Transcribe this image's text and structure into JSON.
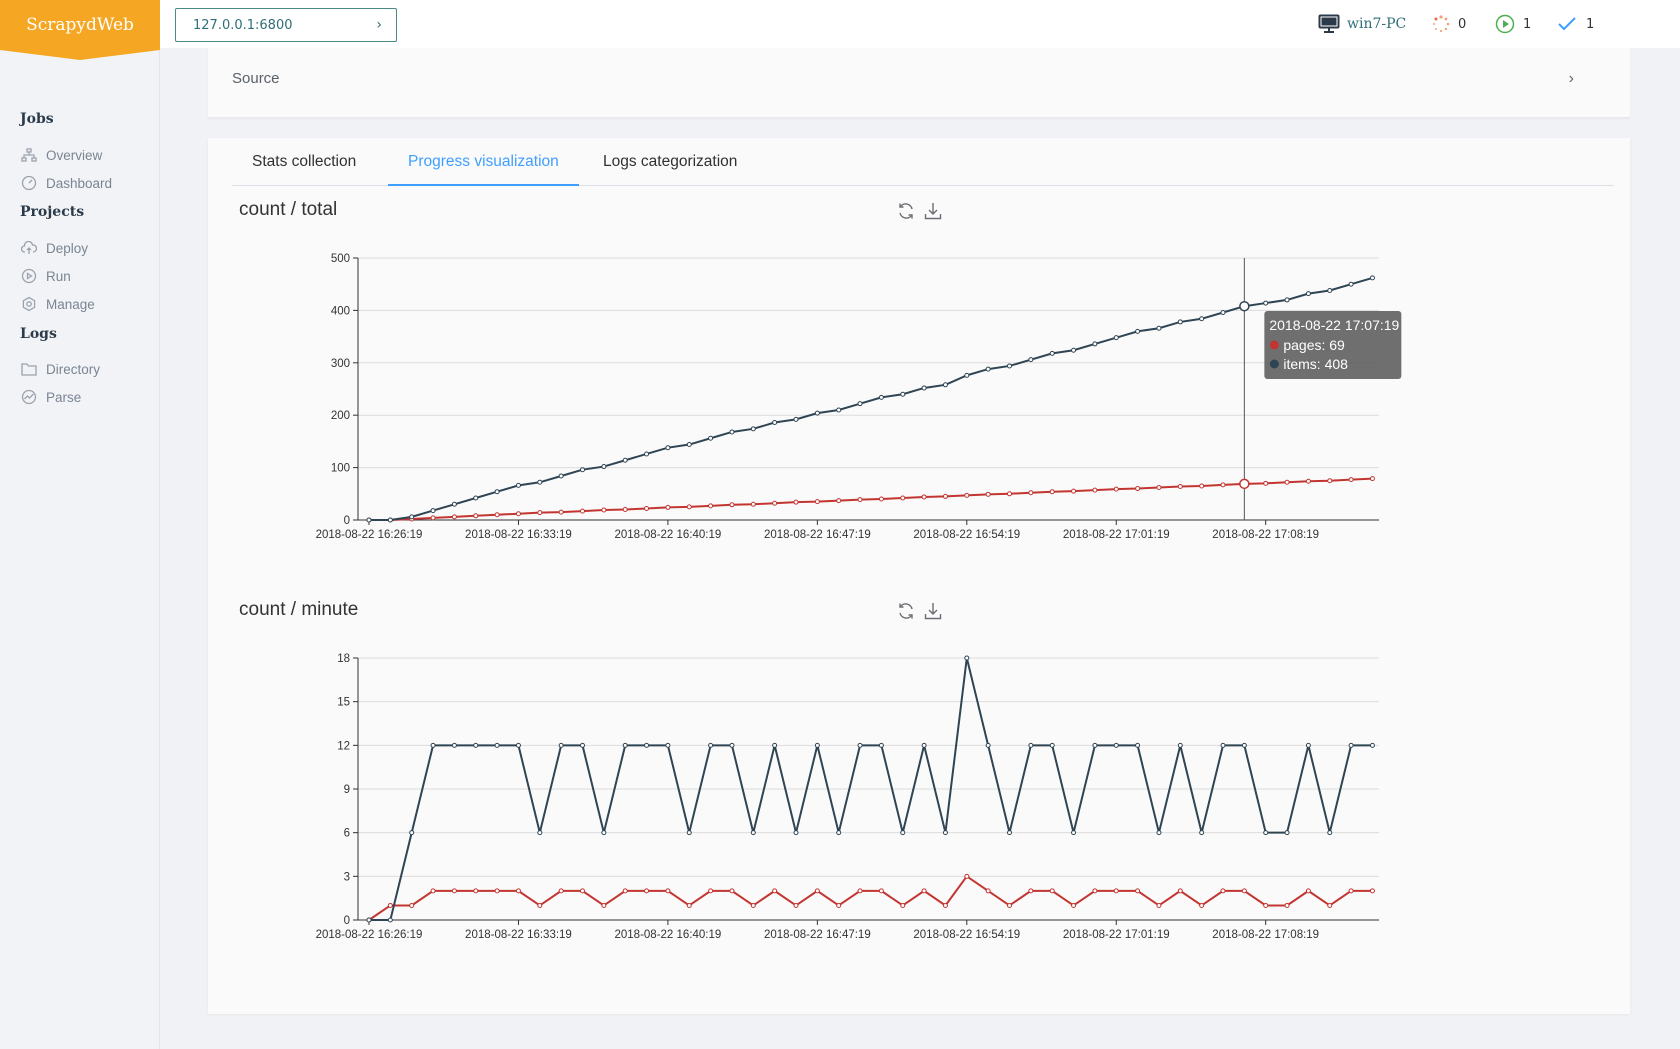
{
  "sidebar": {
    "logo": "ScrapydWeb",
    "groups": [
      {
        "title": "Jobs",
        "items": [
          {
            "label": "Overview",
            "icon": "sitemap-icon"
          },
          {
            "label": "Dashboard",
            "icon": "gauge-icon"
          }
        ]
      },
      {
        "title": "Projects",
        "items": [
          {
            "label": "Deploy",
            "icon": "upload-cloud-icon"
          },
          {
            "label": "Run",
            "icon": "play-circle-icon"
          },
          {
            "label": "Manage",
            "icon": "gear-icon"
          }
        ]
      },
      {
        "title": "Logs",
        "items": [
          {
            "label": "Directory",
            "icon": "folder-icon"
          },
          {
            "label": "Parse",
            "icon": "chart-line-icon"
          }
        ]
      }
    ]
  },
  "header": {
    "node": "127.0.0.1:6800",
    "host": "win7-PC",
    "pending": "0",
    "running": "1",
    "finished": "1",
    "colors": {
      "pending": "#f5a07a",
      "running": "#4caf50",
      "finished": "#409eff"
    }
  },
  "source": {
    "label": "Source"
  },
  "tabs": [
    {
      "label": "Stats collection",
      "active": false
    },
    {
      "label": "Progress visualization",
      "active": true
    },
    {
      "label": "Logs categorization",
      "active": false
    }
  ],
  "chart_data": [
    {
      "type": "line",
      "title": "count / total",
      "x_ticks": [
        "2018-08-22 16:26:19",
        "2018-08-22 16:33:19",
        "2018-08-22 16:40:19",
        "2018-08-22 16:47:19",
        "2018-08-22 16:54:19",
        "2018-08-22 17:01:19",
        "2018-08-22 17:08:19"
      ],
      "ylim": [
        0,
        500
      ],
      "y_ticks": [
        0,
        100,
        200,
        300,
        400,
        500
      ],
      "grid": true,
      "series": [
        {
          "name": "pages",
          "color": "#c23531",
          "values": [
            0,
            0,
            2,
            4,
            6,
            8,
            10,
            12,
            14,
            15,
            17,
            19,
            20,
            22,
            24,
            25,
            27,
            29,
            30,
            32,
            34,
            35,
            37,
            39,
            40,
            42,
            44,
            45,
            47,
            49,
            50,
            52,
            54,
            55,
            57,
            59,
            60,
            62,
            64,
            65,
            67,
            69,
            70,
            72,
            74,
            75,
            77,
            79
          ]
        },
        {
          "name": "items",
          "color": "#2f4554",
          "values": [
            0,
            0,
            6,
            18,
            30,
            42,
            54,
            66,
            72,
            84,
            96,
            102,
            114,
            126,
            138,
            144,
            156,
            168,
            174,
            186,
            192,
            204,
            210,
            222,
            234,
            240,
            252,
            258,
            276,
            288,
            294,
            306,
            318,
            324,
            336,
            348,
            360,
            366,
            378,
            384,
            396,
            408,
            414,
            420,
            432,
            438,
            450,
            462
          ]
        }
      ],
      "tooltip": {
        "title": "2018-08-22 17:07:19",
        "index": 41,
        "lines": [
          "pages: 69",
          "items: 408"
        ]
      }
    },
    {
      "type": "line",
      "title": "count / minute",
      "x_ticks": [
        "2018-08-22 16:26:19",
        "2018-08-22 16:33:19",
        "2018-08-22 16:40:19",
        "2018-08-22 16:47:19",
        "2018-08-22 16:54:19",
        "2018-08-22 17:01:19",
        "2018-08-22 17:08:19"
      ],
      "ylim": [
        0,
        18
      ],
      "y_ticks": [
        0,
        3,
        6,
        9,
        12,
        15,
        18
      ],
      "grid": true,
      "series": [
        {
          "name": "pages",
          "color": "#c23531",
          "values": [
            0,
            1,
            1,
            2,
            2,
            2,
            2,
            2,
            1,
            2,
            2,
            1,
            2,
            2,
            2,
            1,
            2,
            2,
            1,
            2,
            1,
            2,
            1,
            2,
            2,
            1,
            2,
            1,
            3,
            2,
            1,
            2,
            2,
            1,
            2,
            2,
            2,
            1,
            2,
            1,
            2,
            2,
            1,
            1,
            2,
            1,
            2,
            2
          ]
        },
        {
          "name": "items",
          "color": "#2f4554",
          "values": [
            0,
            0,
            6,
            12,
            12,
            12,
            12,
            12,
            6,
            12,
            12,
            6,
            12,
            12,
            12,
            6,
            12,
            12,
            6,
            12,
            6,
            12,
            6,
            12,
            12,
            6,
            12,
            6,
            18,
            12,
            6,
            12,
            12,
            6,
            12,
            12,
            12,
            6,
            12,
            6,
            12,
            12,
            6,
            6,
            12,
            6,
            12,
            12
          ]
        }
      ]
    }
  ]
}
